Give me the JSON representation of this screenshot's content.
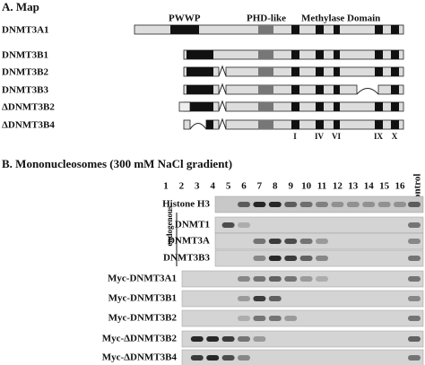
{
  "panel_a": {
    "title": "A. Map",
    "domains": [
      "PWWP",
      "PHD-like",
      "Methylase Domain"
    ],
    "proteins": [
      "DNMT3A1",
      "DNMT3B1",
      "DNMT3B2",
      "DNMT3B3",
      "ΔDNMT3B2",
      "ΔDNMT3B4"
    ],
    "motifs": [
      "I",
      "IV",
      "VI",
      "IX",
      "X"
    ]
  },
  "panel_b": {
    "title": "B. Mononucleosomes (300 mM NaCl gradient)",
    "lanes": [
      "1",
      "2",
      "3",
      "4",
      "5",
      "6",
      "7",
      "8",
      "9",
      "10",
      "11",
      "12",
      "13",
      "14",
      "15",
      "16"
    ],
    "control": "Control",
    "group_label": "endogenous",
    "rows": [
      "Histone H3",
      "DNMT1",
      "DNMT3A",
      "DNMT3B3",
      "Myc-DNMT3A1",
      "Myc-DNMT3B1",
      "Myc-DNMT3B2",
      "Myc-ΔDNMT3B2",
      "Myc-ΔDNMT3B4"
    ]
  }
}
